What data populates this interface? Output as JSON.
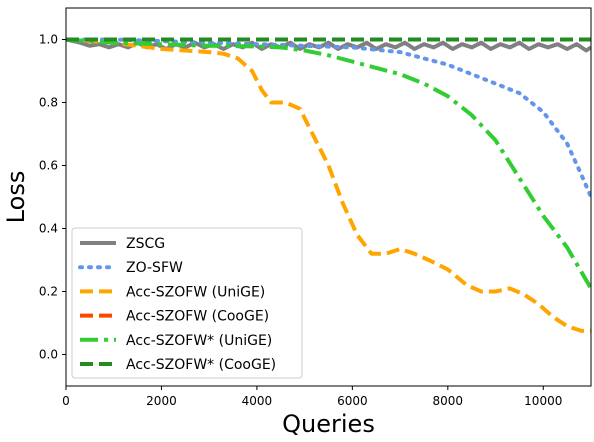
{
  "chart_data": {
    "type": "line",
    "title": "",
    "xlabel": "Queries",
    "ylabel": "Loss",
    "xlim": [
      0,
      11000
    ],
    "ylim": [
      -0.1,
      1.1
    ],
    "grid": false,
    "legend_position": "lower-left",
    "x_ticks": [
      0,
      2000,
      4000,
      6000,
      8000,
      10000
    ],
    "x_tick_labels": [
      "0",
      "2000",
      "4000",
      "6000",
      "8000",
      "10000"
    ],
    "y_ticks": [
      0.0,
      0.2,
      0.4,
      0.6,
      0.8,
      1.0
    ],
    "y_tick_labels": [
      "0.0",
      "0.2",
      "0.4",
      "0.6",
      "0.8",
      "1.0"
    ],
    "series": [
      {
        "name": "ZSCG",
        "color": "#808080",
        "dash": "solid",
        "width": 4,
        "points": [
          [
            0,
            1.0
          ],
          [
            300,
            0.99
          ],
          [
            500,
            0.98
          ],
          [
            700,
            0.985
          ],
          [
            900,
            0.975
          ],
          [
            1100,
            0.985
          ],
          [
            1300,
            0.975
          ],
          [
            1500,
            0.99
          ],
          [
            1700,
            0.975
          ],
          [
            1900,
            0.985
          ],
          [
            2100,
            0.97
          ],
          [
            2300,
            0.985
          ],
          [
            2500,
            0.975
          ],
          [
            2700,
            0.99
          ],
          [
            2900,
            0.975
          ],
          [
            3100,
            0.985
          ],
          [
            3300,
            0.97
          ],
          [
            3500,
            0.985
          ],
          [
            3700,
            0.975
          ],
          [
            3900,
            0.99
          ],
          [
            4100,
            0.97
          ],
          [
            4300,
            0.985
          ],
          [
            4500,
            0.975
          ],
          [
            4700,
            0.99
          ],
          [
            4900,
            0.97
          ],
          [
            5100,
            0.985
          ],
          [
            5300,
            0.975
          ],
          [
            5500,
            0.99
          ],
          [
            5700,
            0.97
          ],
          [
            5900,
            0.985
          ],
          [
            6100,
            0.975
          ],
          [
            6300,
            0.99
          ],
          [
            6500,
            0.97
          ],
          [
            6700,
            0.985
          ],
          [
            6900,
            0.975
          ],
          [
            7100,
            0.99
          ],
          [
            7300,
            0.97
          ],
          [
            7500,
            0.985
          ],
          [
            7700,
            0.975
          ],
          [
            7900,
            0.99
          ],
          [
            8100,
            0.97
          ],
          [
            8300,
            0.985
          ],
          [
            8500,
            0.975
          ],
          [
            8700,
            0.99
          ],
          [
            8900,
            0.97
          ],
          [
            9100,
            0.985
          ],
          [
            9300,
            0.975
          ],
          [
            9500,
            0.99
          ],
          [
            9700,
            0.97
          ],
          [
            9900,
            0.985
          ],
          [
            10100,
            0.975
          ],
          [
            10300,
            0.985
          ],
          [
            10500,
            0.97
          ],
          [
            10700,
            0.985
          ],
          [
            10900,
            0.965
          ],
          [
            11000,
            0.975
          ]
        ]
      },
      {
        "name": "ZO-SFW",
        "color": "#6495ED",
        "dash": "dot",
        "width": 4,
        "points": [
          [
            0,
            1.0
          ],
          [
            1000,
            1.0
          ],
          [
            2000,
            0.995
          ],
          [
            3000,
            0.99
          ],
          [
            4000,
            0.985
          ],
          [
            5000,
            0.98
          ],
          [
            6000,
            0.975
          ],
          [
            7000,
            0.96
          ],
          [
            8000,
            0.92
          ],
          [
            9000,
            0.86
          ],
          [
            9500,
            0.83
          ],
          [
            10000,
            0.77
          ],
          [
            10500,
            0.67
          ],
          [
            10800,
            0.57
          ],
          [
            11000,
            0.5
          ]
        ]
      },
      {
        "name": "Acc-SZOFW (UniGE)",
        "color": "#FFA500",
        "dash": "dash",
        "width": 4,
        "points": [
          [
            0,
            1.0
          ],
          [
            500,
            0.995
          ],
          [
            1000,
            0.99
          ],
          [
            1500,
            0.98
          ],
          [
            2000,
            0.97
          ],
          [
            2500,
            0.965
          ],
          [
            3000,
            0.96
          ],
          [
            3300,
            0.955
          ],
          [
            3600,
            0.94
          ],
          [
            3900,
            0.9
          ],
          [
            4100,
            0.84
          ],
          [
            4300,
            0.8
          ],
          [
            4600,
            0.8
          ],
          [
            4900,
            0.78
          ],
          [
            5200,
            0.69
          ],
          [
            5500,
            0.6
          ],
          [
            5800,
            0.48
          ],
          [
            6100,
            0.38
          ],
          [
            6400,
            0.32
          ],
          [
            6700,
            0.32
          ],
          [
            7000,
            0.335
          ],
          [
            7300,
            0.32
          ],
          [
            7600,
            0.3
          ],
          [
            8000,
            0.27
          ],
          [
            8400,
            0.22
          ],
          [
            8700,
            0.2
          ],
          [
            9000,
            0.2
          ],
          [
            9300,
            0.21
          ],
          [
            9600,
            0.19
          ],
          [
            9900,
            0.16
          ],
          [
            10200,
            0.12
          ],
          [
            10500,
            0.09
          ],
          [
            10800,
            0.075
          ],
          [
            11000,
            0.075
          ]
        ]
      },
      {
        "name": "Acc-SZOFW (CooGE)",
        "color": "#FF4500",
        "dash": "dash",
        "width": 4,
        "points": [
          [
            0,
            1.0
          ],
          [
            11000,
            1.0
          ]
        ]
      },
      {
        "name": "Acc-SZOFW* (UniGE)",
        "color": "#32CD32",
        "dash": "dashdot",
        "width": 4,
        "points": [
          [
            0,
            1.0
          ],
          [
            1000,
            0.99
          ],
          [
            2000,
            0.985
          ],
          [
            3000,
            0.98
          ],
          [
            4000,
            0.978
          ],
          [
            4500,
            0.975
          ],
          [
            5000,
            0.965
          ],
          [
            5500,
            0.95
          ],
          [
            6000,
            0.93
          ],
          [
            6500,
            0.91
          ],
          [
            7000,
            0.89
          ],
          [
            7500,
            0.86
          ],
          [
            8000,
            0.82
          ],
          [
            8500,
            0.76
          ],
          [
            9000,
            0.68
          ],
          [
            9500,
            0.56
          ],
          [
            10000,
            0.44
          ],
          [
            10500,
            0.34
          ],
          [
            11000,
            0.21
          ]
        ]
      },
      {
        "name": "Acc-SZOFW* (CooGE)",
        "color": "#228B22",
        "dash": "dash",
        "width": 4,
        "points": [
          [
            0,
            1.0
          ],
          [
            11000,
            1.0
          ]
        ]
      }
    ]
  }
}
